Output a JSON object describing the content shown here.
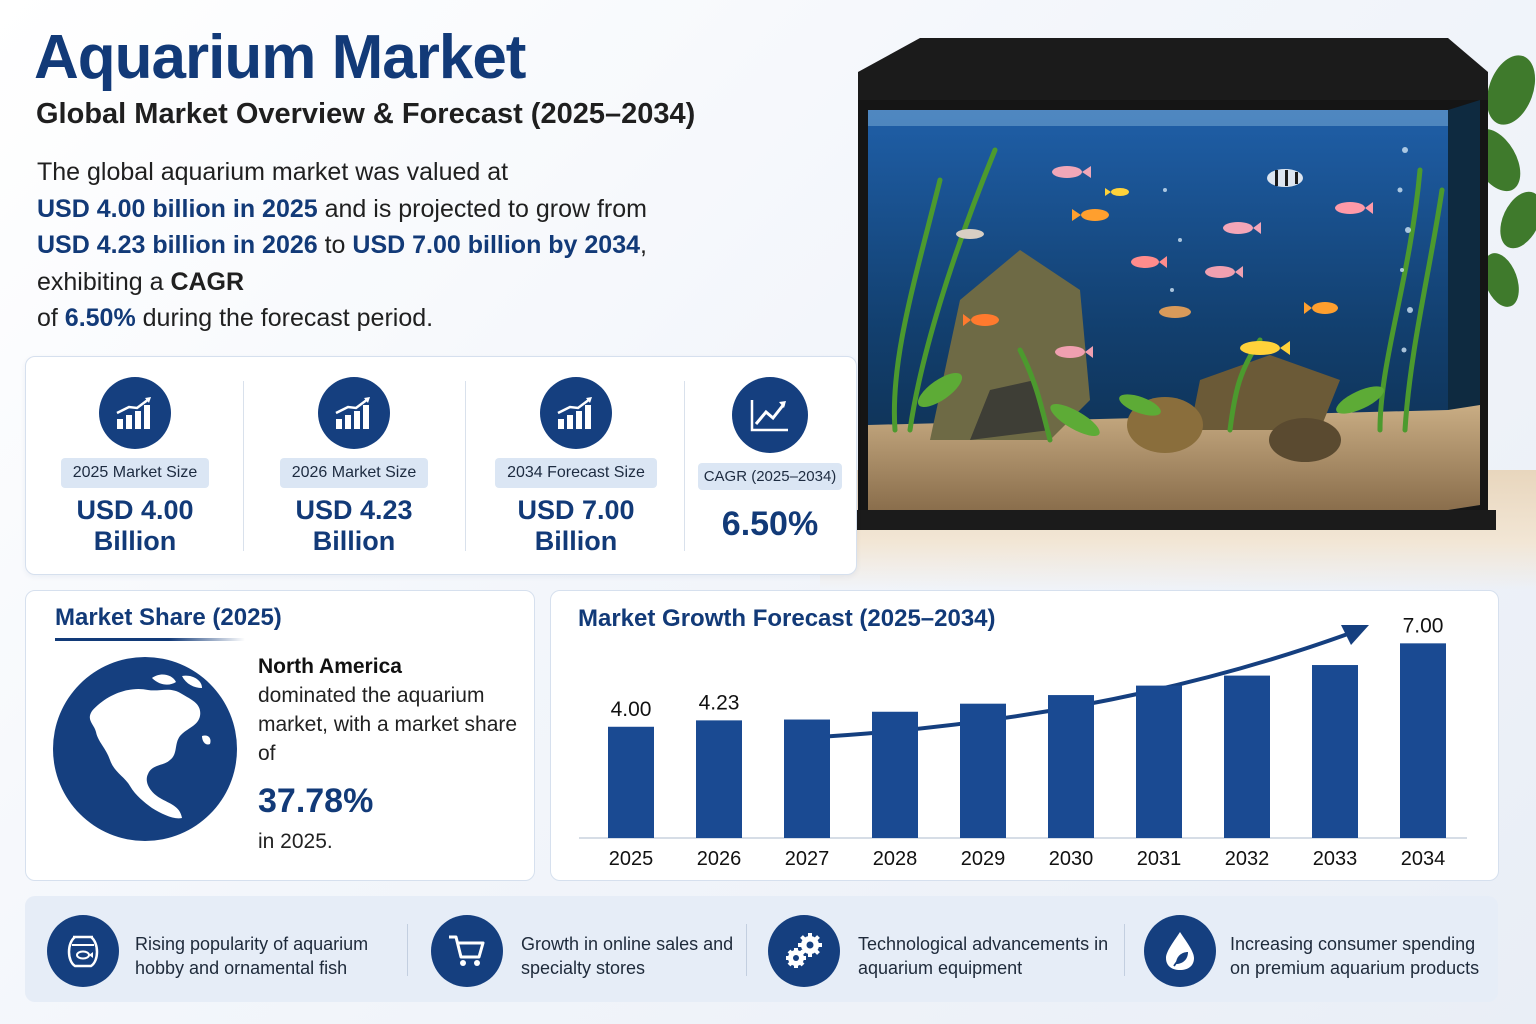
{
  "header": {
    "title": "Aquarium Market",
    "subtitle": "Global Market Overview & Forecast (2025–2034)"
  },
  "intro": {
    "p1": "The global aquarium market was valued at",
    "h1": "USD 4.00 billion in 2025",
    "p2": " and is projected to grow from ",
    "h2": "USD 4.23 billion in 2026",
    "p3": " to ",
    "h3": "USD 7.00 billion by 2034",
    "p4": ", exhibiting a ",
    "s1": "CAGR",
    "p5": " of ",
    "h4": "6.50%",
    "p6": " during the forecast period."
  },
  "kpis": [
    {
      "icon": "bar-chart-growth-icon",
      "label": "2025 Market Size",
      "value": "USD 4.00",
      "unit": "Billion"
    },
    {
      "icon": "bar-chart-growth-icon",
      "label": "2026 Market Size",
      "value": "USD 4.23",
      "unit": "Billion"
    },
    {
      "icon": "bar-chart-growth-icon",
      "label": "2034 Forecast Size",
      "value": "USD 7.00",
      "unit": "Billion"
    },
    {
      "icon": "line-chart-trend-icon",
      "label": "CAGR (2025–2034)",
      "value": "6.50%",
      "unit": ""
    }
  ],
  "market_share": {
    "title": "Market Share (2025)",
    "region": "North America",
    "text": "dominated the aquarium market, with a market share of",
    "percent": "37.78%",
    "suffix": "in 2025.",
    "icon": "globe-north-america-icon"
  },
  "forecast": {
    "title": "Market Growth Forecast (2025–2034)"
  },
  "chart_data": {
    "type": "bar",
    "title": "Market Growth Forecast (2025–2034)",
    "categories": [
      "2025",
      "2026",
      "2027",
      "2028",
      "2029",
      "2030",
      "2031",
      "2032",
      "2033",
      "2034"
    ],
    "values": [
      4.0,
      4.23,
      4.26,
      4.54,
      4.83,
      5.14,
      5.48,
      5.84,
      6.22,
      7.0
    ],
    "data_labels": [
      "4.00",
      "4.23",
      "",
      "",
      "",
      "",
      "",
      "",
      "",
      "7.00"
    ],
    "ylim": [
      0,
      7.3
    ],
    "grid": false,
    "bar_color": "#1a4a92",
    "trend_arrow": true
  },
  "drivers": [
    {
      "icon": "fishbowl-icon",
      "text": "Rising popularity of aquarium hobby and ornamental fish"
    },
    {
      "icon": "shopping-cart-icon",
      "text": "Growth in online sales and specialty stores"
    },
    {
      "icon": "gears-icon",
      "text": "Technological advancements in aquarium equipment"
    },
    {
      "icon": "water-drop-leaf-icon",
      "text": "Increasing consumer spending on premium aquarium products"
    }
  ],
  "colors": {
    "brand": "#123a78",
    "icon_bg": "#153f7f",
    "pill_bg": "#dbe6f4"
  }
}
